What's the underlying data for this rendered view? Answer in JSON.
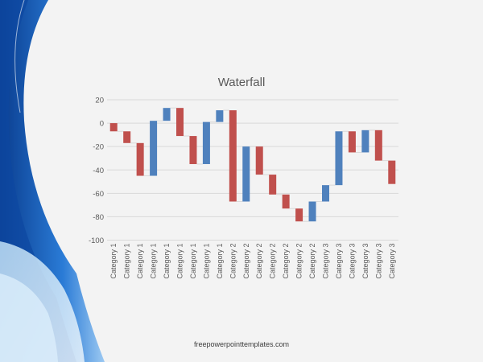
{
  "slide": {
    "footer": "freepowerpointtemplates.com"
  },
  "colors": {
    "increase": "#4f81bd",
    "decrease": "#c0504d",
    "connector": "#d9d9d9",
    "grid": "#d9d9d9",
    "axis_text": "#595959"
  },
  "chart_data": {
    "type": "waterfall",
    "title": "Waterfall",
    "xlabel": "",
    "ylabel": "",
    "ylim": [
      -100,
      20
    ],
    "yticks": [
      20,
      0,
      -20,
      -40,
      -60,
      -80,
      -100
    ],
    "grid": true,
    "legend": "none",
    "start": 0,
    "categories": [
      "Category 1",
      "Category 1",
      "Category 1",
      "Category 1",
      "Category 1",
      "Category 1",
      "Category 1",
      "Category 1",
      "Category 1",
      "Category 2",
      "Category 2",
      "Category 2",
      "Category 2",
      "Category 2",
      "Category 2",
      "Category 2",
      "Category 3",
      "Category 3",
      "Category 3",
      "Category 3",
      "Category 3",
      "Category 3"
    ],
    "values": [
      -7,
      -10,
      -28,
      47,
      11,
      -24,
      -24,
      36,
      10,
      -78,
      47,
      -24,
      -17,
      -12,
      -11,
      17,
      14,
      46,
      -18,
      19,
      -26,
      -20
    ]
  }
}
